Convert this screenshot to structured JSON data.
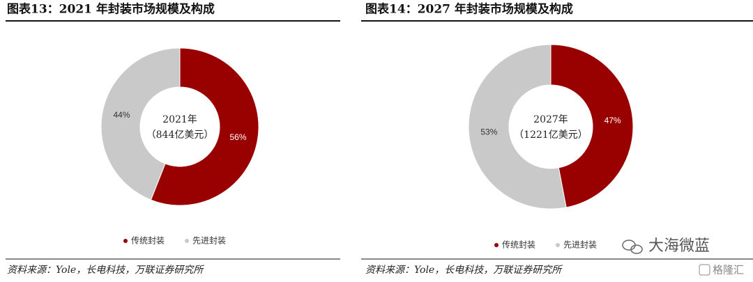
{
  "chart_data": [
    {
      "type": "donut",
      "title": "图表13：2021 年封装市场规模及构成",
      "categories": [
        "传统封装",
        "先进封装"
      ],
      "values": [
        56,
        44
      ],
      "value_labels": [
        "56%",
        "44%"
      ],
      "colors": [
        "#990000",
        "#c9c9c9"
      ],
      "center_label": [
        "2021年",
        "（844亿美元）"
      ],
      "source": "资料来源：Yole，长电科技，万联证券研究所"
    },
    {
      "type": "donut",
      "title": "图表14：2027 年封装市场规模及构成",
      "categories": [
        "传统封装",
        "先进封装"
      ],
      "values": [
        47,
        53
      ],
      "value_labels": [
        "47%",
        "53%"
      ],
      "colors": [
        "#990000",
        "#c9c9c9"
      ],
      "center_label": [
        "2027年",
        "（1221亿美元）"
      ],
      "source": "资料来源：Yole，长电科技，万联证券研究所"
    }
  ],
  "watermark": "大海微蓝",
  "watermark2": "格隆汇"
}
